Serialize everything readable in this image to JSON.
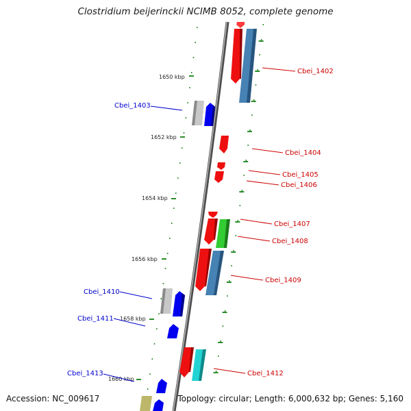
{
  "title": "Clostridium beijerinckii NCIMB 8052, complete genome",
  "footer": {
    "accession": "Accession: NC_009617",
    "summary": "Topology: circular; Length: 6,000,632 bp; Genes: 5,160"
  },
  "colors": {
    "backbone": "#8c8c8c",
    "tick": "#2a8c2a",
    "reverse_label": "#0000cc",
    "forward_label": "#cc0000"
  },
  "kbp_marks": [
    "1650 kbp",
    "1652 kbp",
    "1654 kbp",
    "1656 kbp",
    "1658 kbp",
    "1660 kbp"
  ],
  "gene_labels": {
    "reverse_strand": [
      "Cbei_1403",
      "Cbei_1410",
      "Cbei_1411",
      "Cbei_1413"
    ],
    "forward_strand": [
      "Cbei_1402",
      "Cbei_1404",
      "Cbei_1405",
      "Cbei_1406",
      "Cbei_1407",
      "Cbei_1408",
      "Cbei_1409",
      "Cbei_1412"
    ]
  }
}
